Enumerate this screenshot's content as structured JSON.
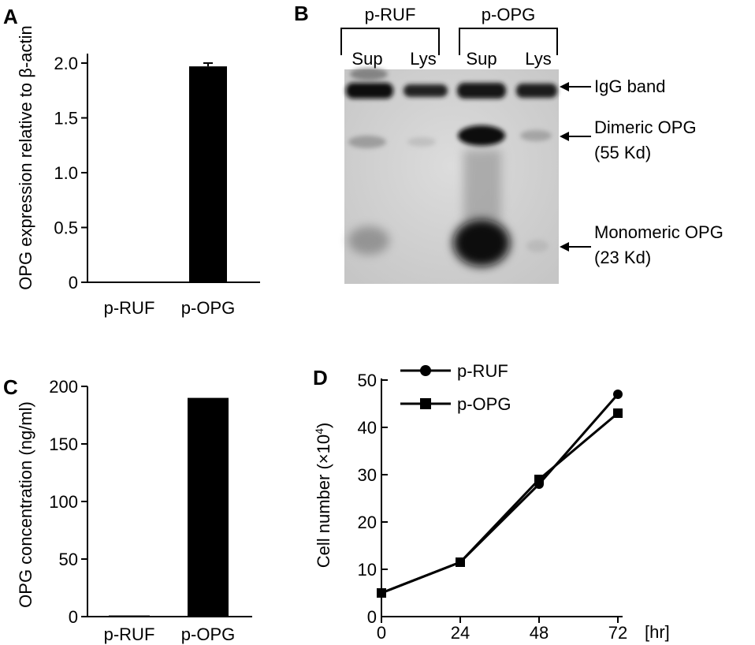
{
  "panels": {
    "A": {
      "letter": "A"
    },
    "B": {
      "letter": "B"
    },
    "C": {
      "letter": "C"
    },
    "D": {
      "letter": "D"
    }
  },
  "chart_data": [
    {
      "panel": "A",
      "type": "bar",
      "ylabel": "OPG expression relative to β-actin",
      "categories": [
        "p-RUF",
        "p-OPG"
      ],
      "values": [
        0,
        1.97
      ],
      "error": [
        0,
        0.03
      ],
      "ylim": [
        0,
        2.0
      ],
      "yticks": [
        "0",
        "0.5",
        "1.0",
        "1.5",
        "2.0"
      ],
      "ytick_values": [
        0,
        0.5,
        1.0,
        1.5,
        2.0
      ],
      "grid": false,
      "bar_color": "#000000"
    },
    {
      "panel": "B",
      "type": "blot",
      "groups": [
        {
          "label": "p-RUF",
          "lanes": [
            "Sup",
            "Lys"
          ]
        },
        {
          "label": "p-OPG",
          "lanes": [
            "Sup",
            "Lys"
          ]
        }
      ],
      "band_labels": [
        {
          "line1": "IgG band",
          "line2": ""
        },
        {
          "line1": "Dimeric OPG",
          "line2": "(55 Kd)"
        },
        {
          "line1": "Monomeric OPG",
          "line2": "(23 Kd)"
        }
      ]
    },
    {
      "panel": "C",
      "type": "bar",
      "ylabel": "OPG concentration (ng/ml)",
      "categories": [
        "p-RUF",
        "p-OPG"
      ],
      "values": [
        1,
        190
      ],
      "ylim": [
        0,
        200
      ],
      "yticks": [
        "0",
        "50",
        "100",
        "150",
        "200"
      ],
      "ytick_values": [
        0,
        50,
        100,
        150,
        200
      ],
      "grid": false,
      "bar_color": "#000000"
    },
    {
      "panel": "D",
      "type": "line",
      "ylabel": "Cell number (×10⁴)",
      "xunit": "[hr]",
      "x": [
        0,
        24,
        48,
        72
      ],
      "xticks": [
        "0",
        "24",
        "48",
        "72"
      ],
      "ylim": [
        0,
        50
      ],
      "yticks": [
        "0",
        "10",
        "20",
        "30",
        "40",
        "50"
      ],
      "ytick_values": [
        0,
        10,
        20,
        30,
        40,
        50
      ],
      "legend_position": "top-left",
      "series": [
        {
          "name": "p-RUF",
          "marker": "circle",
          "values": [
            5,
            11.5,
            28,
            47
          ]
        },
        {
          "name": "p-OPG",
          "marker": "square",
          "values": [
            5,
            11.5,
            29,
            43
          ]
        }
      ],
      "grid": false
    }
  ]
}
